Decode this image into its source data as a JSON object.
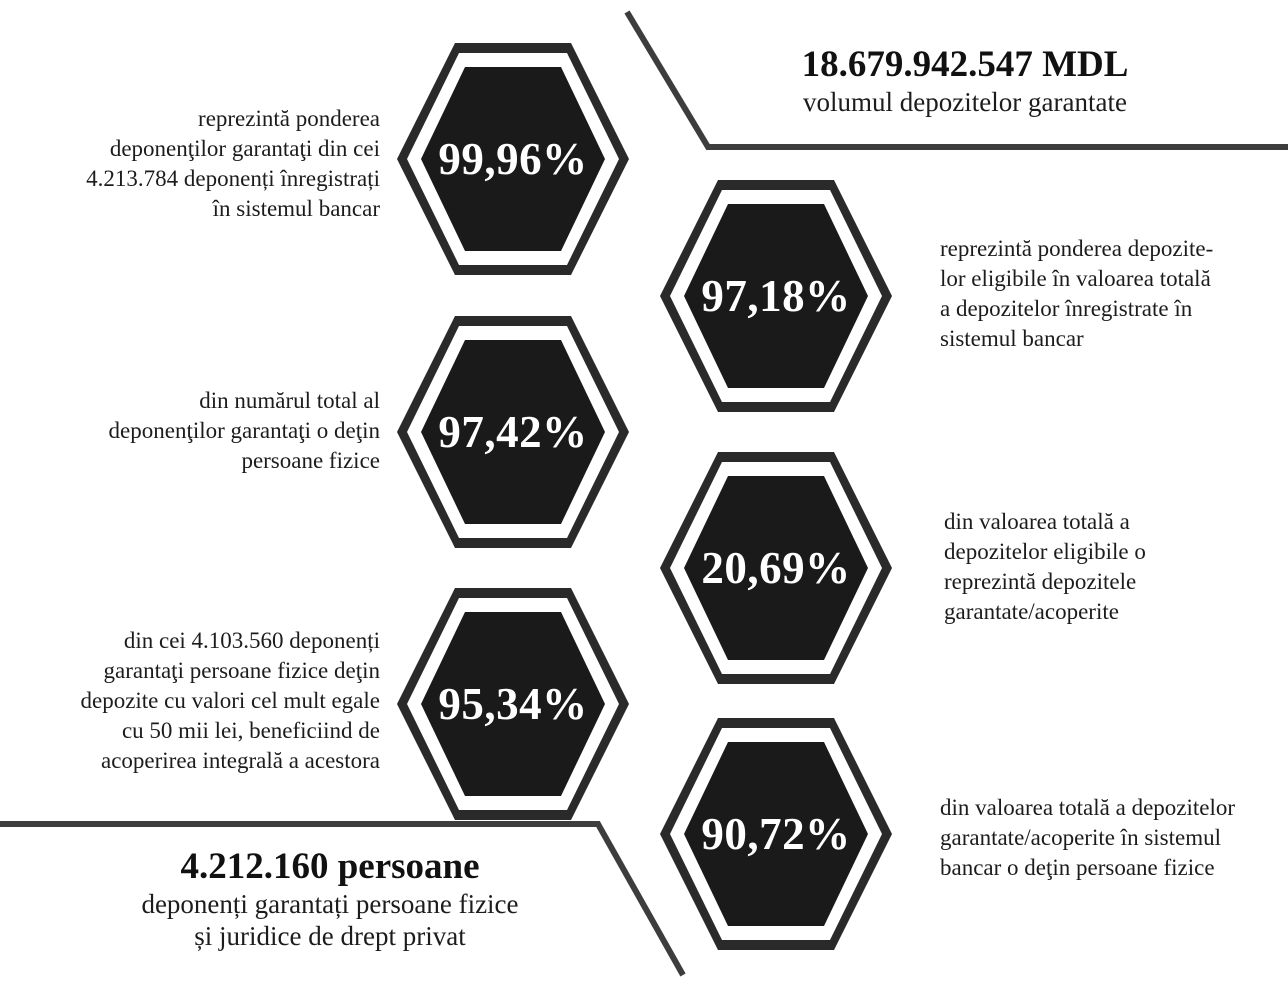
{
  "colors": {
    "hex_fill": "#1a1a1a",
    "hex_ring": "#2a2a2a",
    "line": "#3d3d3d"
  },
  "top_summary": {
    "value": "18.679.942.547 MDL",
    "label": "volumul depozitelor garantate"
  },
  "bottom_summary": {
    "value": "4.212.160 persoane",
    "label_line1": "deponenți garantați persoane fizice",
    "label_line2": "și juridice de drept privat"
  },
  "left_items": [
    {
      "value": "99,96%",
      "lines": [
        "reprezintă ponderea",
        "deponenţilor garantaţi din cei",
        "4.213.784 deponenți înregistrați",
        "în sistemul bancar"
      ]
    },
    {
      "value": "97,42%",
      "lines": [
        "din numărul total al",
        "deponenţilor garantaţi o deţin",
        "persoane fizice"
      ]
    },
    {
      "value": "95,34%",
      "lines": [
        "din cei 4.103.560 deponenți",
        "garantaţi persoane fizice deţin",
        "depozite cu valori cel mult egale",
        "cu 50 mii lei, beneficiind de",
        "acoperirea integrală a acestora"
      ]
    }
  ],
  "right_items": [
    {
      "value": "97,18%",
      "lines": [
        "reprezintă ponderea depozite-",
        "lor eligibile în valoarea totală",
        "a depozitelor înregistrate în",
        "sistemul bancar"
      ]
    },
    {
      "value": "20,69%",
      "lines": [
        "din valoarea totală a",
        "depozitelor eligibile o",
        "reprezintă depozitele",
        "garantate/acoperite"
      ]
    },
    {
      "value": "90,72%",
      "lines": [
        "din valoarea totală a depozitelor",
        "garantate/acoperite în sistemul",
        "bancar o deţin persoane fizice"
      ]
    }
  ]
}
